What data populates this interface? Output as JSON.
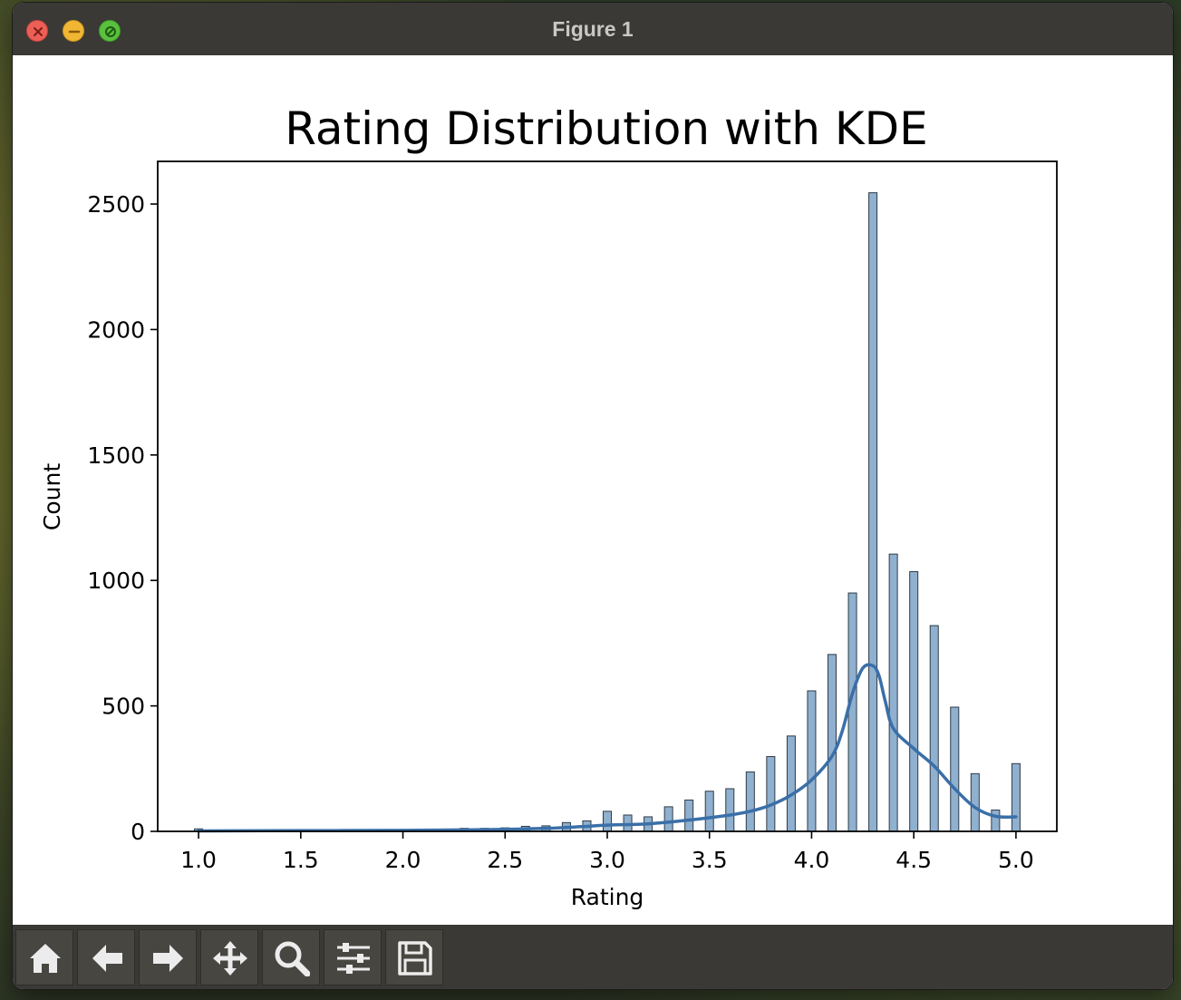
{
  "window": {
    "title": "Figure 1"
  },
  "toolbar": {
    "buttons": [
      {
        "name": "home-button",
        "icon": "home-icon"
      },
      {
        "name": "back-button",
        "icon": "arrow-left-icon"
      },
      {
        "name": "forward-button",
        "icon": "arrow-right-icon"
      },
      {
        "name": "pan-button",
        "icon": "move-icon"
      },
      {
        "name": "zoom-button",
        "icon": "magnifier-icon"
      },
      {
        "name": "configure-subplots-button",
        "icon": "sliders-icon"
      },
      {
        "name": "save-button",
        "icon": "floppy-disk-icon"
      }
    ]
  },
  "colors": {
    "bar_fill": "#8fb0ce",
    "bar_edge": "#2f3b48",
    "kde_line": "#3a6fa8",
    "chrome": "#3a3935"
  },
  "chart_data": {
    "type": "bar",
    "title": "Rating Distribution with KDE",
    "xlabel": "Rating",
    "ylabel": "Count",
    "xlim": [
      0.8,
      5.2
    ],
    "ylim": [
      0,
      2670
    ],
    "xticks": [
      1.0,
      1.5,
      2.0,
      2.5,
      3.0,
      3.5,
      4.0,
      4.5,
      5.0
    ],
    "xtick_labels": [
      "1.0",
      "1.5",
      "2.0",
      "2.5",
      "3.0",
      "3.5",
      "4.0",
      "4.5",
      "5.0"
    ],
    "yticks": [
      0,
      500,
      1000,
      1500,
      2000,
      2500
    ],
    "ytick_labels": [
      "0",
      "500",
      "1000",
      "1500",
      "2000",
      "2500"
    ],
    "grid": false,
    "bin_width": 0.04,
    "bars": [
      {
        "x": 1.0,
        "count": 10
      },
      {
        "x": 2.3,
        "count": 12
      },
      {
        "x": 2.4,
        "count": 12
      },
      {
        "x": 2.5,
        "count": 14
      },
      {
        "x": 2.6,
        "count": 20
      },
      {
        "x": 2.7,
        "count": 22
      },
      {
        "x": 2.8,
        "count": 35
      },
      {
        "x": 2.9,
        "count": 42
      },
      {
        "x": 3.0,
        "count": 80
      },
      {
        "x": 3.1,
        "count": 65
      },
      {
        "x": 3.2,
        "count": 58
      },
      {
        "x": 3.3,
        "count": 98
      },
      {
        "x": 3.4,
        "count": 125
      },
      {
        "x": 3.5,
        "count": 160
      },
      {
        "x": 3.6,
        "count": 170
      },
      {
        "x": 3.7,
        "count": 237
      },
      {
        "x": 3.8,
        "count": 298
      },
      {
        "x": 3.9,
        "count": 380
      },
      {
        "x": 4.0,
        "count": 560
      },
      {
        "x": 4.1,
        "count": 705
      },
      {
        "x": 4.2,
        "count": 950
      },
      {
        "x": 4.3,
        "count": 2545
      },
      {
        "x": 4.4,
        "count": 1105
      },
      {
        "x": 4.5,
        "count": 1035
      },
      {
        "x": 4.6,
        "count": 820
      },
      {
        "x": 4.7,
        "count": 495
      },
      {
        "x": 4.8,
        "count": 230
      },
      {
        "x": 4.9,
        "count": 85
      },
      {
        "x": 5.0,
        "count": 270
      }
    ],
    "kde": {
      "x": [
        1.0,
        1.5,
        2.0,
        2.3,
        2.5,
        2.7,
        2.9,
        3.0,
        3.2,
        3.4,
        3.6,
        3.7,
        3.8,
        3.9,
        4.0,
        4.1,
        4.15,
        4.2,
        4.25,
        4.3,
        4.33,
        4.36,
        4.4,
        4.5,
        4.6,
        4.7,
        4.8,
        4.9,
        5.0
      ],
      "y": [
        2,
        3,
        4,
        6,
        8,
        12,
        20,
        25,
        30,
        45,
        65,
        80,
        105,
        145,
        205,
        300,
        400,
        550,
        650,
        660,
        620,
        520,
        410,
        330,
        260,
        170,
        95,
        60,
        58
      ]
    }
  }
}
